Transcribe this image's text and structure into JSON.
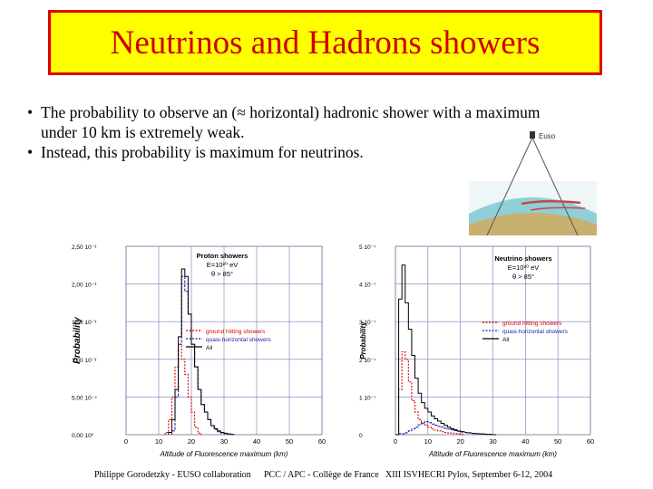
{
  "title": "Neutrinos and Hadrons showers",
  "bullets": [
    {
      "text": "The probability to observe an (≈ horizontal) hadronic shower with a maximum",
      "continuation": "under 10 km is extremely weak."
    },
    {
      "text": "Instead, this probability is maximum for neutrinos."
    }
  ],
  "diagram": {
    "label": "Euso"
  },
  "footer": {
    "left": "Philippe Gorodetzky - EUSO collaboration",
    "center": "PCC / APC - Collège de France",
    "right": "XIII ISVHECRI  Pylos, September 6-12, 2004"
  },
  "colors": {
    "title_bg": "#ffff00",
    "title_border": "#e00000",
    "title_text": "#cc0000",
    "red_series": "#dd0000",
    "blue_series": "#2222aa",
    "black_series": "#000000"
  },
  "chart_data": [
    {
      "type": "line",
      "title": "Proton showers",
      "annotation_lines": [
        "E=10²⁰ eV",
        "θ > 85°"
      ],
      "xlabel": "Altitude of Fluorescence maximum (km)",
      "ylabel": "Probability",
      "xlim": [
        0,
        60
      ],
      "ylim": [
        0,
        0.0025
      ],
      "x_ticks": [
        "0",
        "10",
        "20",
        "30",
        "40",
        "50",
        "60"
      ],
      "y_ticks": [
        "0,00 10⁰",
        "5,00 10⁻⁴",
        "1,00 10⁻³",
        "1,50 10⁻³",
        "2,00 10⁻³",
        "2,50 10⁻³"
      ],
      "legend": [
        "ground hitting showers",
        "quasi-horizontal showers",
        "All"
      ],
      "legend_position": "right",
      "series": [
        {
          "name": "ground hitting showers",
          "color": "#dd0000",
          "x": [
            12,
            13,
            14,
            15,
            16,
            17,
            18,
            19,
            20,
            21,
            22
          ],
          "values": [
            3e-05,
            0.0002,
            0.0005,
            0.0009,
            0.0012,
            0.001,
            0.0008,
            0.0005,
            0.0003,
            0.0001,
            2e-05
          ]
        },
        {
          "name": "quasi-horizontal showers",
          "color": "#2222aa",
          "x": [
            14,
            15,
            16,
            17,
            18,
            19,
            20,
            21,
            22,
            23,
            24,
            25,
            26,
            27,
            28,
            29,
            30
          ],
          "values": [
            5e-05,
            0.0005,
            0.0012,
            0.0021,
            0.0019,
            0.0016,
            0.0012,
            0.0009,
            0.0006,
            0.0004,
            0.0003,
            0.0002,
            0.00012,
            7e-05,
            4e-05,
            2e-05,
            1e-05
          ]
        },
        {
          "name": "All",
          "color": "#000000",
          "x": [
            13,
            14,
            15,
            16,
            17,
            18,
            19,
            20,
            21,
            22,
            23,
            24,
            25,
            26,
            27,
            28,
            29,
            30,
            31,
            32
          ],
          "values": [
            3e-05,
            0.0002,
            0.0006,
            0.0013,
            0.0022,
            0.0021,
            0.0016,
            0.0012,
            0.0009,
            0.0006,
            0.0004,
            0.0003,
            0.0002,
            0.00012,
            8e-05,
            5e-05,
            3e-05,
            2e-05,
            1e-05,
            5e-06
          ]
        }
      ]
    },
    {
      "type": "line",
      "title": "Neutrino showers",
      "annotation_lines": [
        "E=10²⁰ eV",
        "θ > 85°"
      ],
      "xlabel": "Altitude of Fluorescence maximum (km)",
      "ylabel": "Probability",
      "xlim": [
        0,
        60
      ],
      "ylim": [
        0,
        5e-07
      ],
      "x_ticks": [
        "0",
        "10",
        "20",
        "30",
        "40",
        "50",
        "60"
      ],
      "y_ticks": [
        "0",
        "1 10⁻⁷",
        "2 10⁻⁷",
        "3 10⁻⁷",
        "4 10⁻⁷",
        "5 10⁻⁷"
      ],
      "legend": [
        "ground hitting showers",
        "quasi-horizontal showers",
        "All"
      ],
      "legend_position": "right",
      "series": [
        {
          "name": "ground hitting showers",
          "color": "#dd0000",
          "x": [
            0,
            1,
            2,
            3,
            4,
            5,
            6,
            7,
            8,
            9,
            10,
            11,
            12,
            13,
            14,
            15,
            16,
            17,
            18,
            19,
            20
          ],
          "values": [
            0,
            1.2e-07,
            2.2e-07,
            2e-07,
            1.4e-07,
            9e-08,
            6e-08,
            4e-08,
            3e-08,
            2.5e-08,
            2e-08,
            1.5e-08,
            1.2e-08,
            1e-08,
            8e-09,
            6e-09,
            5e-09,
            4e-09,
            3e-09,
            2e-09,
            1e-09
          ]
        },
        {
          "name": "quasi-horizontal showers",
          "color": "#2222aa",
          "x": [
            0,
            1,
            2,
            3,
            4,
            5,
            6,
            7,
            8,
            9,
            10,
            11,
            12,
            13,
            14,
            15,
            16,
            17,
            18,
            19,
            20,
            22,
            24,
            26,
            28,
            30
          ],
          "values": [
            0,
            3e-09,
            2e-09,
            5e-09,
            1e-08,
            1.5e-08,
            2e-08,
            2.6e-08,
            3.2e-08,
            3.5e-08,
            3.2e-08,
            2.8e-08,
            2.5e-08,
            2.2e-08,
            2e-08,
            1.7e-08,
            1.5e-08,
            1.3e-08,
            1.1e-08,
            9e-09,
            7e-09,
            5e-09,
            3e-09,
            2e-09,
            1e-09,
            0
          ]
        },
        {
          "name": "All",
          "color": "#000000",
          "x": [
            0,
            1,
            2,
            3,
            4,
            5,
            6,
            7,
            8,
            9,
            10,
            11,
            12,
            13,
            14,
            15,
            16,
            17,
            18,
            19,
            20,
            22,
            24,
            26,
            28,
            30
          ],
          "values": [
            0,
            3.6e-07,
            4.5e-07,
            3.5e-07,
            2.8e-07,
            2.1e-07,
            1.5e-07,
            1.1e-07,
            8.5e-08,
            7e-08,
            6e-08,
            5e-08,
            4.2e-08,
            3.6e-08,
            3e-08,
            2.5e-08,
            2e-08,
            1.6e-08,
            1.3e-08,
            1e-08,
            8e-09,
            5e-09,
            3e-09,
            2e-09,
            1e-09,
            0
          ]
        }
      ]
    }
  ]
}
